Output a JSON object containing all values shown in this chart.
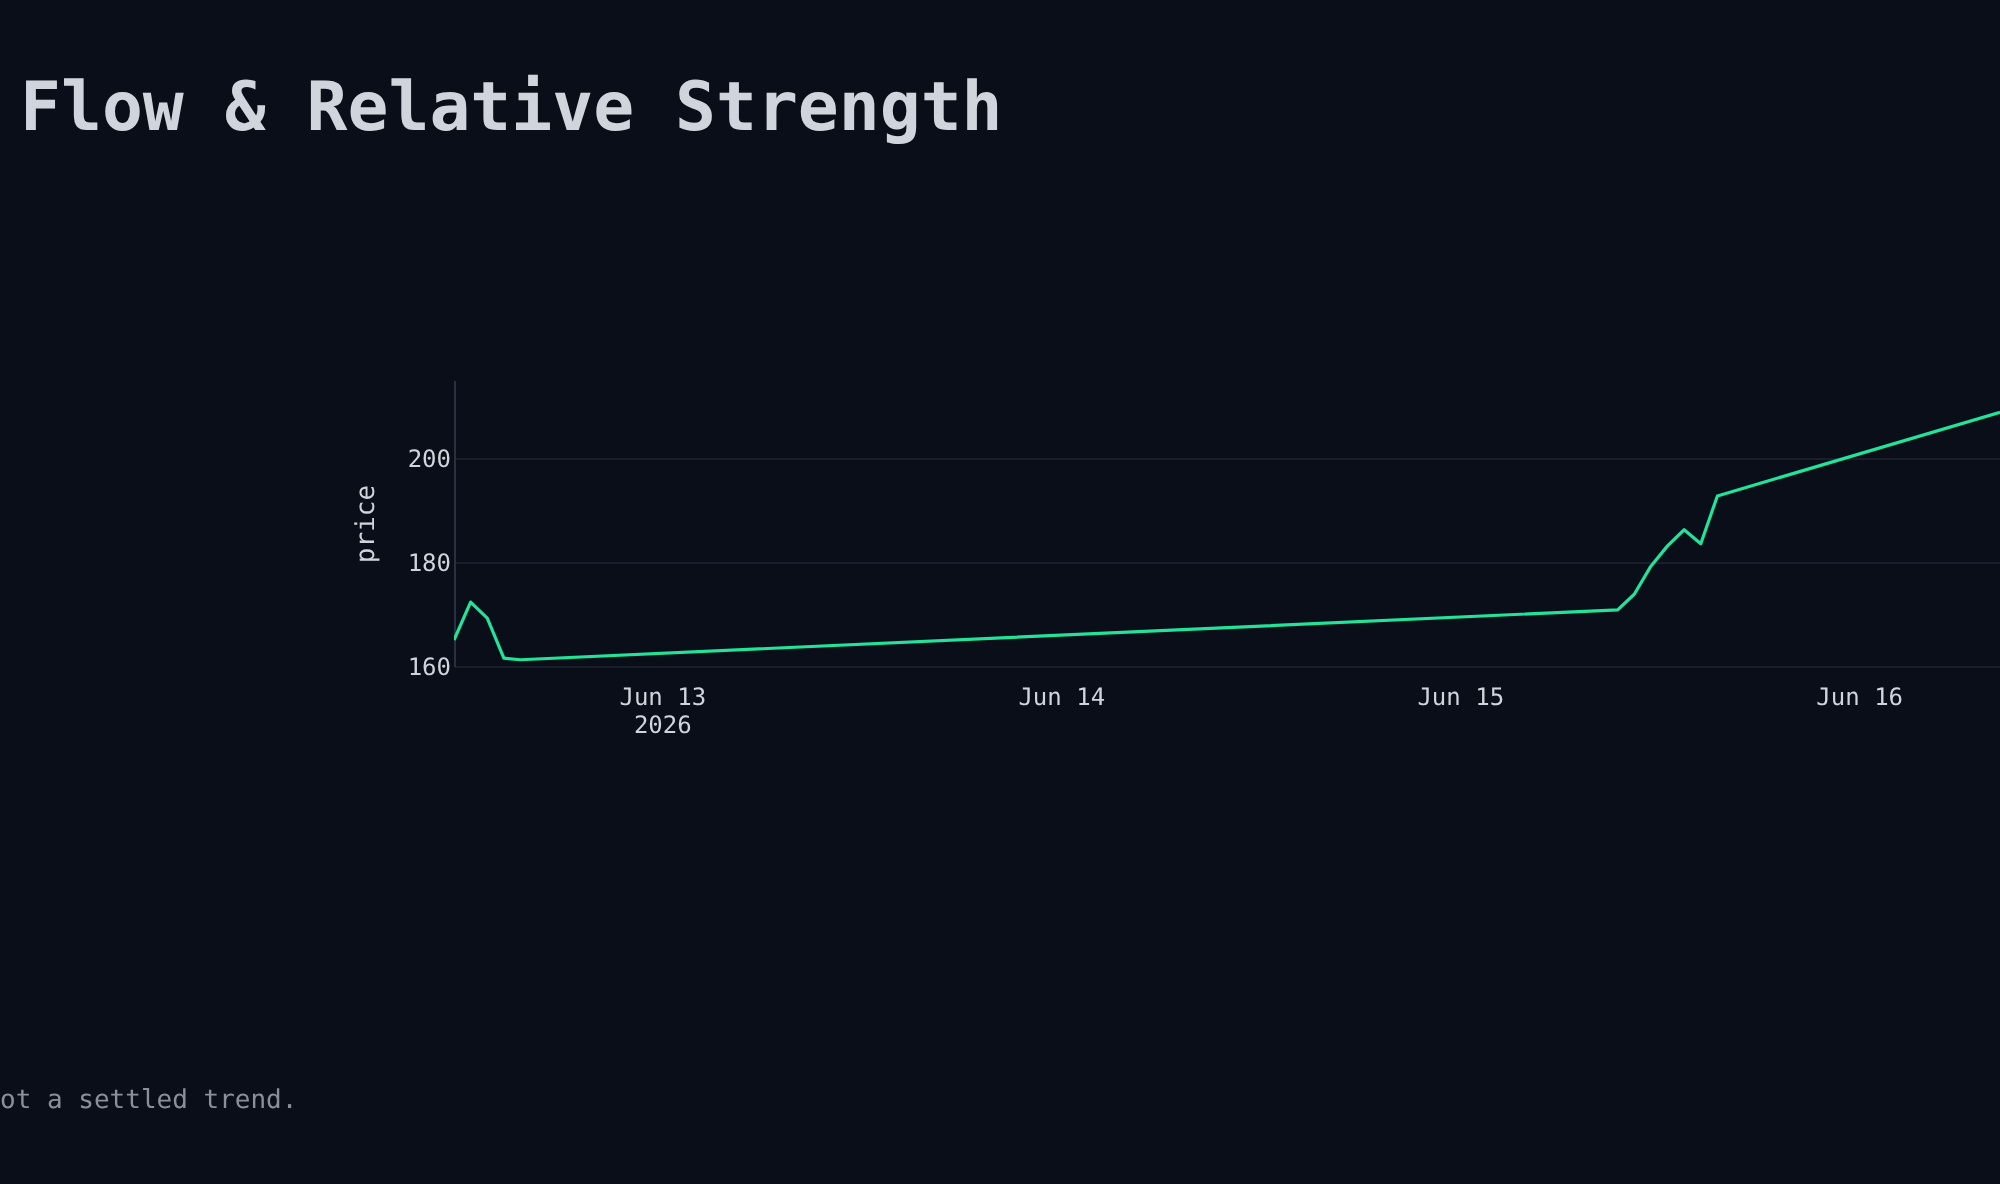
{
  "chart_data": {
    "type": "line",
    "title": "Flow & Relative Strength",
    "ylabel": "price",
    "annotations": [
      "ot a settled trend."
    ],
    "x": [
      "2026-06-12T11:30",
      "2026-06-12T12:30",
      "2026-06-12T13:30",
      "2026-06-12T14:30",
      "2026-06-12T15:30",
      "2026-06-15T09:30",
      "2026-06-15T10:30",
      "2026-06-15T11:30",
      "2026-06-15T12:30",
      "2026-06-15T13:30",
      "2026-06-15T14:30",
      "2026-06-15T15:30",
      "2026-06-16T08:30"
    ],
    "series": [
      {
        "color": "#22e39a",
        "values": [
          165.0,
          172.3,
          169.2,
          161.5,
          161.2,
          170.8,
          173.8,
          179.2,
          183.1,
          186.2,
          183.5,
          192.7,
          208.8
        ]
      }
    ],
    "xlim": [
      "2026-06-12T11:30",
      "2026-06-16T08:30"
    ],
    "xticks": [
      {
        "value": "2026-06-13",
        "label": "Jun 13\n2026"
      },
      {
        "value": "2026-06-14",
        "label": "Jun 14"
      },
      {
        "value": "2026-06-15",
        "label": "Jun 15"
      },
      {
        "value": "2026-06-16",
        "label": "Jun 16"
      }
    ],
    "ylim": [
      160,
      215
    ],
    "yticks": [
      160,
      180,
      200
    ],
    "grid": "y",
    "legend": false,
    "marker": "none",
    "line_style": "solid"
  }
}
